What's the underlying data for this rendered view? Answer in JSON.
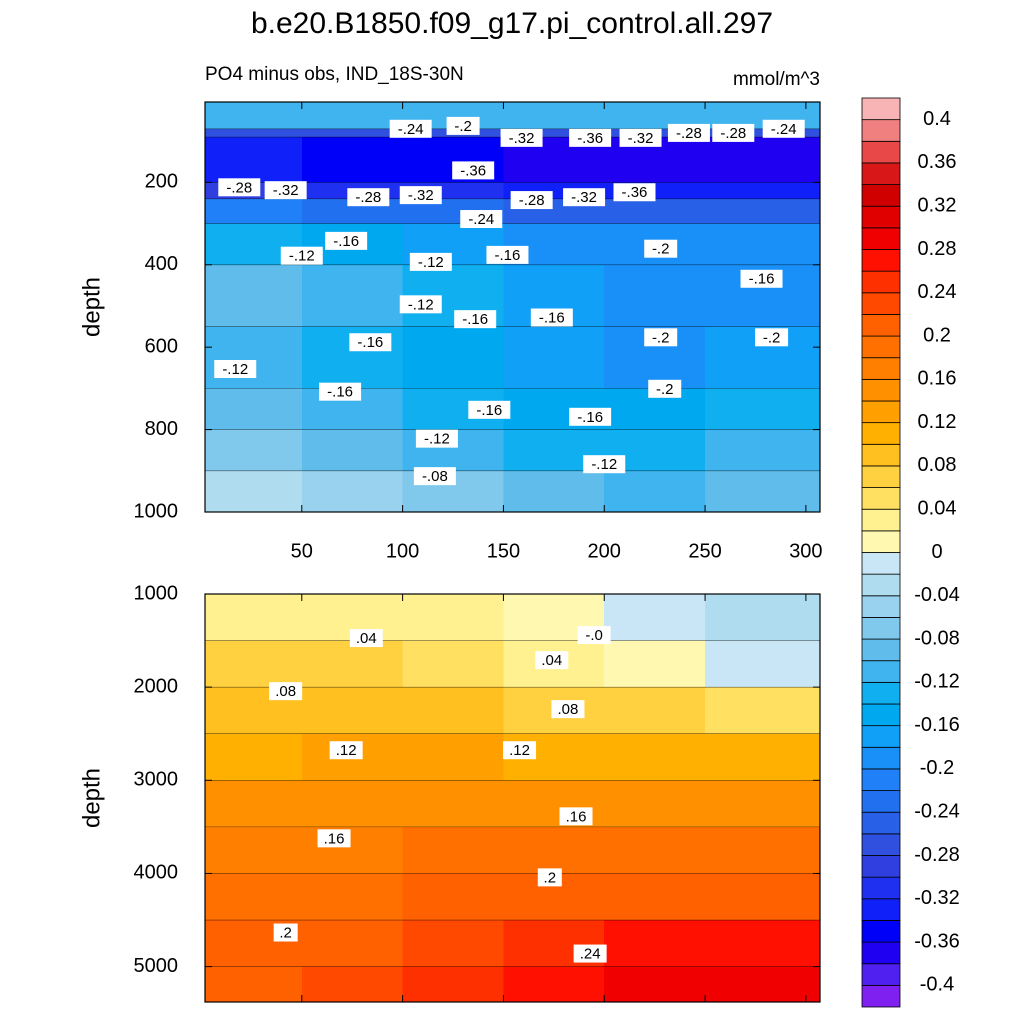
{
  "title": "b.e20.B1850.f09_g17.pi_control.all.297",
  "chart_data": [
    {
      "type": "contour",
      "left_label": "PO4 minus obs, IND_18S-30N",
      "right_label": "mmol/m^3",
      "ylabel": "depth",
      "xlim": [
        2,
        307
      ],
      "xticks": [
        50,
        100,
        150,
        200,
        250,
        300
      ],
      "ylim": [
        5,
        1000
      ],
      "y_reversed": true,
      "yticks": [
        200,
        400,
        600,
        800,
        1000
      ],
      "x_edges": [
        2,
        50,
        100,
        150,
        200,
        250,
        307
      ],
      "depth_edges": [
        5,
        70,
        90,
        200,
        240,
        300,
        400,
        550,
        700,
        800,
        900,
        1000
      ],
      "values": [
        [
          -0.12,
          -0.12,
          -0.12,
          -0.12,
          -0.12,
          -0.12
        ],
        [
          -0.28,
          -0.28,
          -0.28,
          -0.28,
          -0.28,
          -0.28
        ],
        [
          -0.34,
          -0.36,
          -0.36,
          -0.38,
          -0.38,
          -0.38
        ],
        [
          -0.3,
          -0.32,
          -0.32,
          -0.34,
          -0.34,
          -0.34
        ],
        [
          -0.22,
          -0.24,
          -0.24,
          -0.26,
          -0.26,
          -0.26
        ],
        [
          -0.14,
          -0.16,
          -0.18,
          -0.2,
          -0.2,
          -0.2
        ],
        [
          -0.1,
          -0.12,
          -0.14,
          -0.18,
          -0.2,
          -0.2
        ],
        [
          -0.12,
          -0.14,
          -0.16,
          -0.18,
          -0.2,
          -0.18
        ],
        [
          -0.1,
          -0.12,
          -0.14,
          -0.16,
          -0.16,
          -0.14
        ],
        [
          -0.08,
          -0.1,
          -0.12,
          -0.14,
          -0.14,
          -0.12
        ],
        [
          -0.04,
          -0.06,
          -0.08,
          -0.1,
          -0.12,
          -0.1
        ]
      ],
      "contour_labels": [
        {
          "value": -0.24,
          "label": "-.24",
          "x": 104,
          "depth": 70
        },
        {
          "value": -0.2,
          "label": "-.2",
          "x": 130,
          "depth": 63
        },
        {
          "value": -0.32,
          "label": "-.32",
          "x": 159,
          "depth": 92
        },
        {
          "value": -0.36,
          "label": "-.36",
          "x": 193,
          "depth": 92
        },
        {
          "value": -0.32,
          "label": "-.32",
          "x": 218,
          "depth": 92
        },
        {
          "value": -0.28,
          "label": "-.28",
          "x": 242,
          "depth": 80
        },
        {
          "value": -0.28,
          "label": "-.28",
          "x": 264,
          "depth": 80
        },
        {
          "value": -0.24,
          "label": "-.24",
          "x": 289,
          "depth": 70
        },
        {
          "value": -0.28,
          "label": "-.28",
          "x": 19,
          "depth": 212
        },
        {
          "value": -0.32,
          "label": "-.32",
          "x": 42,
          "depth": 219
        },
        {
          "value": -0.28,
          "label": "-.28",
          "x": 83,
          "depth": 236
        },
        {
          "value": -0.32,
          "label": "-.32",
          "x": 109,
          "depth": 231
        },
        {
          "value": -0.36,
          "label": "-.36",
          "x": 135,
          "depth": 171
        },
        {
          "value": -0.28,
          "label": "-.28",
          "x": 164,
          "depth": 243
        },
        {
          "value": -0.32,
          "label": "-.32",
          "x": 190,
          "depth": 236
        },
        {
          "value": -0.36,
          "label": "-.36",
          "x": 215,
          "depth": 224
        },
        {
          "value": -0.24,
          "label": "-.24",
          "x": 139,
          "depth": 289
        },
        {
          "value": -0.12,
          "label": "-.12",
          "x": 50,
          "depth": 378
        },
        {
          "value": -0.16,
          "label": "-.16",
          "x": 72,
          "depth": 342
        },
        {
          "value": -0.12,
          "label": "-.12",
          "x": 114,
          "depth": 393
        },
        {
          "value": -0.16,
          "label": "-.16",
          "x": 152,
          "depth": 376
        },
        {
          "value": -0.2,
          "label": "-.2",
          "x": 228,
          "depth": 361
        },
        {
          "value": -0.16,
          "label": "-.16",
          "x": 278,
          "depth": 434
        },
        {
          "value": -0.12,
          "label": "-.12",
          "x": 109,
          "depth": 496
        },
        {
          "value": -0.16,
          "label": "-.16",
          "x": 136,
          "depth": 532
        },
        {
          "value": -0.16,
          "label": "-.16",
          "x": 174,
          "depth": 528
        },
        {
          "value": -0.2,
          "label": "-.2",
          "x": 228,
          "depth": 576
        },
        {
          "value": -0.2,
          "label": "-.2",
          "x": 283,
          "depth": 576
        },
        {
          "value": -0.16,
          "label": "-.16",
          "x": 84,
          "depth": 588
        },
        {
          "value": -0.12,
          "label": "-.12",
          "x": 17,
          "depth": 653
        },
        {
          "value": -0.16,
          "label": "-.16",
          "x": 69,
          "depth": 708
        },
        {
          "value": -0.16,
          "label": "-.16",
          "x": 143,
          "depth": 752
        },
        {
          "value": -0.16,
          "label": "-.16",
          "x": 193,
          "depth": 769
        },
        {
          "value": -0.2,
          "label": "-.2",
          "x": 230,
          "depth": 701
        },
        {
          "value": -0.12,
          "label": "-.12",
          "x": 117,
          "depth": 822
        },
        {
          "value": -0.12,
          "label": "-.12",
          "x": 200,
          "depth": 884
        },
        {
          "value": -0.08,
          "label": "-.08",
          "x": 116,
          "depth": 913
        }
      ]
    },
    {
      "type": "contour",
      "ylabel": "depth",
      "xlim": [
        2,
        307
      ],
      "xticks": [
        50,
        100,
        150,
        200,
        250,
        300
      ],
      "ylim": [
        1000,
        5380
      ],
      "y_reversed": true,
      "yticks": [
        1000,
        2000,
        3000,
        4000,
        5000
      ],
      "x_edges": [
        2,
        50,
        100,
        150,
        200,
        250,
        307
      ],
      "depth_edges": [
        1000,
        1500,
        2000,
        2500,
        3000,
        3500,
        4000,
        4500,
        5000,
        5380
      ],
      "values": [
        [
          0.02,
          0.02,
          0.02,
          0.0,
          -0.02,
          -0.04
        ],
        [
          0.06,
          0.06,
          0.04,
          0.02,
          0.0,
          -0.02
        ],
        [
          0.08,
          0.08,
          0.08,
          0.06,
          0.06,
          0.04
        ],
        [
          0.1,
          0.12,
          0.12,
          0.1,
          0.1,
          0.1
        ],
        [
          0.14,
          0.14,
          0.14,
          0.14,
          0.14,
          0.14
        ],
        [
          0.16,
          0.16,
          0.18,
          0.18,
          0.18,
          0.18
        ],
        [
          0.18,
          0.18,
          0.2,
          0.2,
          0.2,
          0.2
        ],
        [
          0.2,
          0.2,
          0.22,
          0.24,
          0.26,
          0.26
        ],
        [
          0.2,
          0.22,
          0.24,
          0.26,
          0.28,
          0.28
        ]
      ],
      "contour_labels": [
        {
          "value": 0.04,
          "label": ".04",
          "x": 82,
          "depth": 1473
        },
        {
          "value": 0,
          "label": "-.0",
          "x": 195,
          "depth": 1441
        },
        {
          "value": 0.04,
          "label": ".04",
          "x": 174,
          "depth": 1710
        },
        {
          "value": 0.08,
          "label": ".08",
          "x": 42,
          "depth": 2043
        },
        {
          "value": 0.08,
          "label": ".08",
          "x": 182,
          "depth": 2236
        },
        {
          "value": 0.12,
          "label": ".12",
          "x": 72,
          "depth": 2677
        },
        {
          "value": 0.12,
          "label": ".12",
          "x": 158,
          "depth": 2677
        },
        {
          "value": 0.16,
          "label": ".16",
          "x": 186,
          "depth": 3387
        },
        {
          "value": 0.16,
          "label": ".16",
          "x": 66,
          "depth": 3623
        },
        {
          "value": 0.2,
          "label": ".2",
          "x": 173,
          "depth": 4042
        },
        {
          "value": 0.2,
          "label": ".2",
          "x": 42,
          "depth": 4634
        },
        {
          "value": 0.24,
          "label": ".24",
          "x": 193,
          "depth": 4860
        }
      ]
    }
  ],
  "colorbar": {
    "lim": [
      -0.42,
      0.42
    ],
    "ticks": [
      0.4,
      0.36,
      0.32,
      0.28,
      0.24,
      0.2,
      0.16,
      0.12,
      0.08,
      0.04,
      0,
      -0.04,
      -0.08,
      -0.12,
      -0.16,
      -0.2,
      -0.24,
      -0.28,
      -0.32,
      -0.36,
      -0.4
    ],
    "colors": [
      "#8020f0",
      "#5020f0",
      "#2000f0",
      "#0000f8",
      "#1020f8",
      "#2030f0",
      "#3040e0",
      "#3050e0",
      "#2860e8",
      "#2070f0",
      "#2080f8",
      "#1890f8",
      "#10a0f8",
      "#00a8f0",
      "#10b0f0",
      "#40b4ee",
      "#60bcea",
      "#80c8ec",
      "#98d2ee",
      "#b0dcf0",
      "#c8e6f5",
      "#fff8b0",
      "#fff090",
      "#ffe060",
      "#ffd040",
      "#ffc020",
      "#ffb000",
      "#ffa000",
      "#ff9000",
      "#ff8000",
      "#ff7000",
      "#ff6000",
      "#ff4800",
      "#ff3000",
      "#ff1000",
      "#f00000",
      "#e00000",
      "#d00000",
      "#d81818",
      "#e84848",
      "#f08080",
      "#f8b4b4"
    ]
  }
}
